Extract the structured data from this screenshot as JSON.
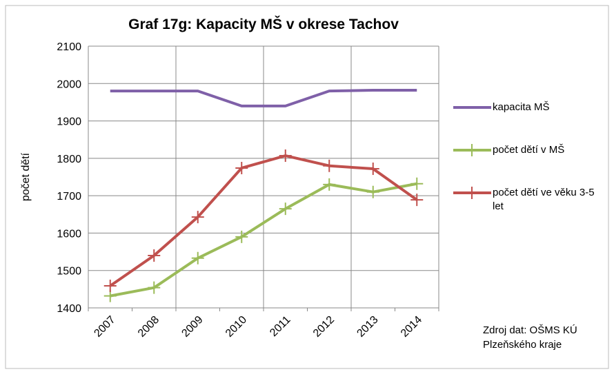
{
  "chart_data": {
    "type": "line",
    "title": "Graf 17g: Kapacity MŠ v okrese Tachov",
    "y_label": "počet dětí",
    "categories": [
      "2007",
      "2008",
      "2009",
      "2010",
      "2011",
      "2012",
      "2013",
      "2014"
    ],
    "series": [
      {
        "name": "kapacita MŠ",
        "color": "#7f60a8",
        "values": [
          1980,
          1980,
          1980,
          1940,
          1940,
          1980,
          1982,
          1982
        ]
      },
      {
        "name": "počet dětí v MŠ",
        "color": "#9bbb59",
        "values": [
          1432,
          1454,
          1533,
          1590,
          1665,
          1730,
          1710,
          1732
        ]
      },
      {
        "name": "počet dětí ve věku 3-5 let",
        "color": "#c0504d",
        "values": [
          1459,
          1540,
          1643,
          1774,
          1807,
          1780,
          1772,
          1689
        ]
      }
    ],
    "ylim": [
      1400,
      2100
    ],
    "yticks": [
      1400,
      1500,
      1600,
      1700,
      1800,
      1900,
      2000,
      2100
    ],
    "grid": true,
    "source": [
      "Zdroj dat: OŠMS KÚ",
      "Plzeňského kraje"
    ]
  }
}
